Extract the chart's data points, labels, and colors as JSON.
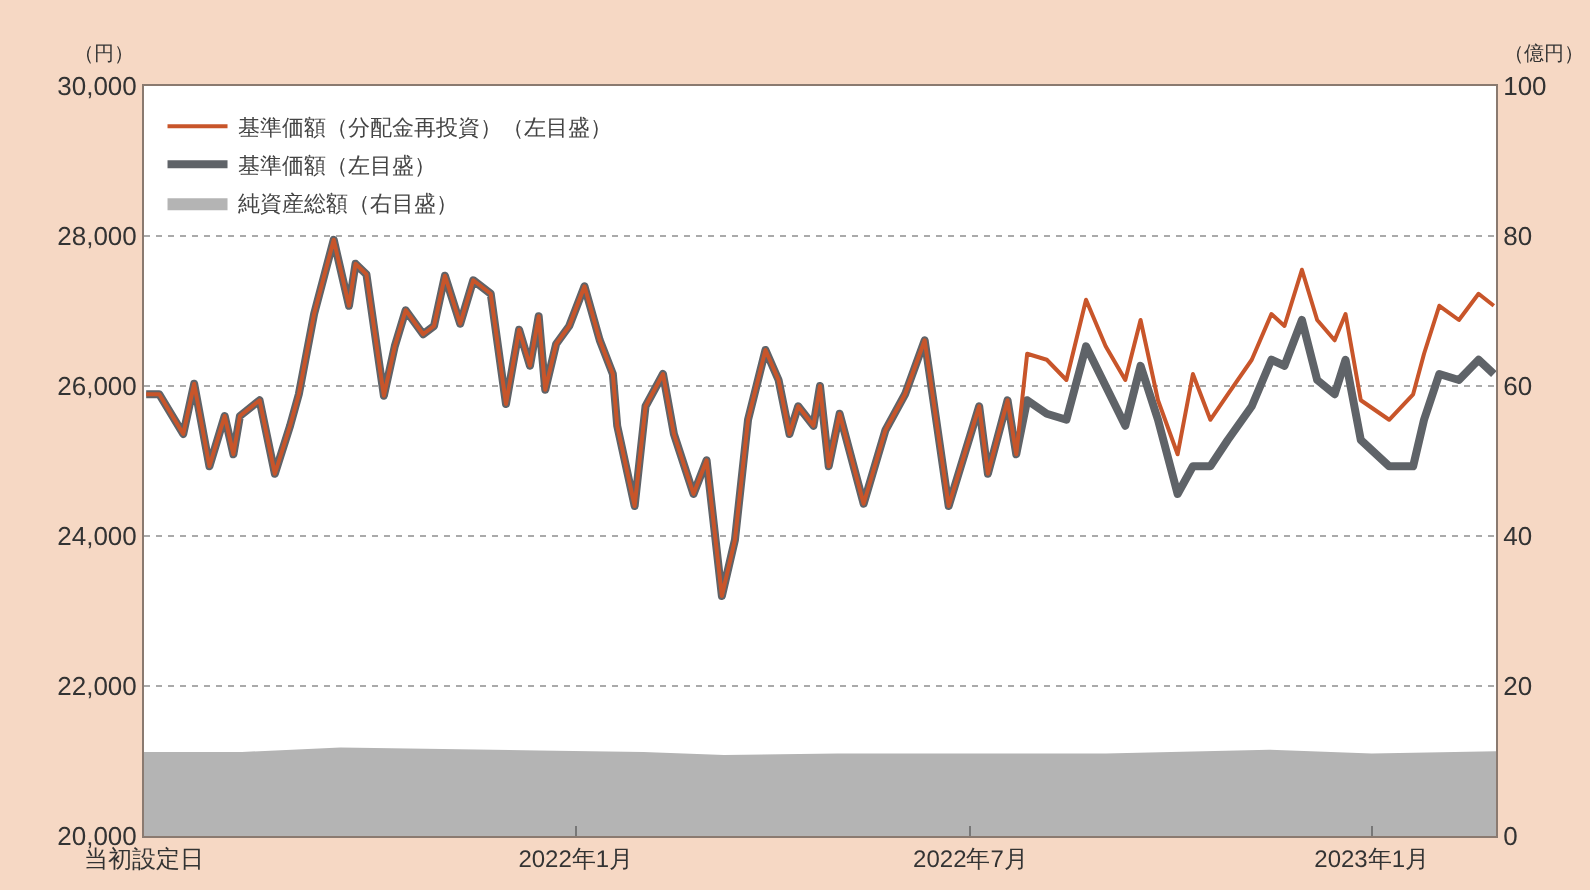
{
  "chart_data": {
    "type": "line",
    "ylabel": "（円）",
    "y2label": "（億円）",
    "x": [
      "2021-06-18",
      "2021-06-24",
      "2021-07-05",
      "2021-07-10",
      "2021-07-17",
      "2021-07-24",
      "2021-07-28",
      "2021-07-31",
      "2021-08-09",
      "2021-08-16",
      "2021-08-23",
      "2021-08-27",
      "2021-09-03",
      "2021-09-12",
      "2021-09-19",
      "2021-09-22",
      "2021-09-27",
      "2021-10-03",
      "2021-10-05",
      "2021-10-10",
      "2021-10-15",
      "2021-10-23",
      "2021-10-28",
      "2021-11-02",
      "2021-11-09",
      "2021-11-15",
      "2021-11-23",
      "2021-11-30",
      "2021-12-06",
      "2021-12-11",
      "2021-12-15",
      "2021-12-18",
      "2021-12-23",
      "2021-12-29",
      "2022-01-05",
      "2022-01-12",
      "2022-01-18",
      "2022-01-20",
      "2022-01-28",
      "2022-02-02",
      "2022-02-10",
      "2022-02-15",
      "2022-02-24",
      "2022-03-02",
      "2022-03-09",
      "2022-03-15",
      "2022-03-21",
      "2022-03-29",
      "2022-04-04",
      "2022-04-09",
      "2022-04-13",
      "2022-04-20",
      "2022-04-23",
      "2022-04-27",
      "2022-05-02",
      "2022-05-13",
      "2022-05-23",
      "2022-06-01",
      "2022-06-10",
      "2022-06-21",
      "2022-07-05",
      "2022-07-09",
      "2022-07-18",
      "2022-07-22",
      "2022-07-27",
      "2022-08-05",
      "2022-08-14",
      "2022-08-23",
      "2022-09-01",
      "2022-09-10",
      "2022-09-17",
      "2022-09-25",
      "2022-10-04",
      "2022-10-11",
      "2022-10-19",
      "2022-10-27",
      "2022-11-07",
      "2022-11-16",
      "2022-11-22",
      "2022-11-30",
      "2022-12-07",
      "2022-12-15",
      "2022-12-20",
      "2022-12-27",
      "2023-01-09",
      "2023-01-20",
      "2023-01-25",
      "2023-02-01",
      "2023-02-10",
      "2023-02-19",
      "2023-02-26"
    ],
    "series": [
      {
        "name": "純資産総額（右目盛）",
        "type": "area",
        "axis": "y2",
        "color": "#b4b4b4",
        "x": [
          "2021-06-17",
          "2021-08-01",
          "2021-09-15",
          "2021-11-01",
          "2021-12-15",
          "2022-02-01",
          "2022-03-10",
          "2022-05-01",
          "2022-07-01",
          "2022-09-01",
          "2022-11-15",
          "2023-01-01",
          "2023-02-27"
        ],
        "values": [
          11.2,
          11.2,
          11.8,
          11.6,
          11.4,
          11.2,
          10.8,
          11.0,
          11.0,
          11.0,
          11.5,
          11.0,
          11.3
        ]
      },
      {
        "name": "基準価額（左目盛）",
        "type": "line",
        "color": "#5f6368",
        "values": [
          25890,
          25890,
          25360,
          26030,
          24930,
          25600,
          25090,
          25600,
          25810,
          24830,
          25470,
          25890,
          26960,
          27950,
          27070,
          27630,
          27490,
          26270,
          25870,
          26530,
          27010,
          26690,
          26800,
          27470,
          26830,
          27410,
          27230,
          25760,
          26750,
          26270,
          26930,
          25950,
          26560,
          26800,
          27330,
          26610,
          26160,
          25470,
          24400,
          25730,
          26160,
          25360,
          24560,
          25010,
          23200,
          23950,
          25550,
          26480,
          26080,
          25360,
          25730,
          25470,
          26000,
          24930,
          25630,
          24430,
          25410,
          25890,
          26610,
          24400,
          25730,
          24830,
          25810,
          25090,
          25810,
          25630,
          25550,
          26530,
          26000,
          25470,
          26270,
          25550,
          24560,
          24930,
          24930,
          25280,
          25730,
          26350,
          26270,
          26880,
          26080,
          25890,
          26350,
          25280,
          24930,
          24930,
          25550,
          26160,
          26080,
          26350,
          26160
        ]
      },
      {
        "name": "基準価額（分配金再投資）（左目盛）",
        "type": "line",
        "color": "#c8552a",
        "values": [
          25890,
          25890,
          25360,
          26030,
          24930,
          25600,
          25090,
          25600,
          25810,
          24830,
          25470,
          25890,
          26960,
          27950,
          27070,
          27630,
          27490,
          26270,
          25870,
          26530,
          27010,
          26690,
          26800,
          27470,
          26830,
          27410,
          27230,
          25760,
          26750,
          26270,
          26930,
          25950,
          26560,
          26800,
          27330,
          26610,
          26160,
          25470,
          24400,
          25730,
          26160,
          25360,
          24560,
          25010,
          23200,
          23950,
          25550,
          26480,
          26080,
          25360,
          25730,
          25470,
          26000,
          24930,
          25630,
          24430,
          25410,
          25890,
          26610,
          24400,
          25730,
          24830,
          25810,
          25090,
          26430,
          26350,
          26080,
          27150,
          26530,
          26080,
          26880,
          25810,
          25090,
          26160,
          25550,
          25890,
          26350,
          26960,
          26800,
          27550,
          26880,
          26610,
          26960,
          25810,
          25550,
          25890,
          26430,
          27070,
          26880,
          27230,
          27070
        ]
      }
    ],
    "xlim": [
      "2021-06-17",
      "2023-02-27"
    ],
    "xticks": [
      {
        "value": "2021-06-17",
        "label": "当初設定日"
      },
      {
        "value": "2022-01-01",
        "label": "2022年1月"
      },
      {
        "value": "2022-07-01",
        "label": "2022年7月"
      },
      {
        "value": "2023-01-01",
        "label": "2023年1月"
      }
    ],
    "ylim": [
      20000,
      30000
    ],
    "yticks": [
      {
        "value": 20000,
        "label": "20,000"
      },
      {
        "value": 22000,
        "label": "22,000"
      },
      {
        "value": 24000,
        "label": "24,000"
      },
      {
        "value": 26000,
        "label": "26,000"
      },
      {
        "value": 28000,
        "label": "28,000"
      },
      {
        "value": 30000,
        "label": "30,000"
      }
    ],
    "y2lim": [
      0,
      100
    ],
    "y2ticks": [
      0,
      20,
      40,
      60,
      80,
      100
    ],
    "grid": "y",
    "legend": "top left",
    "marker": "none",
    "line_style": "solid"
  }
}
